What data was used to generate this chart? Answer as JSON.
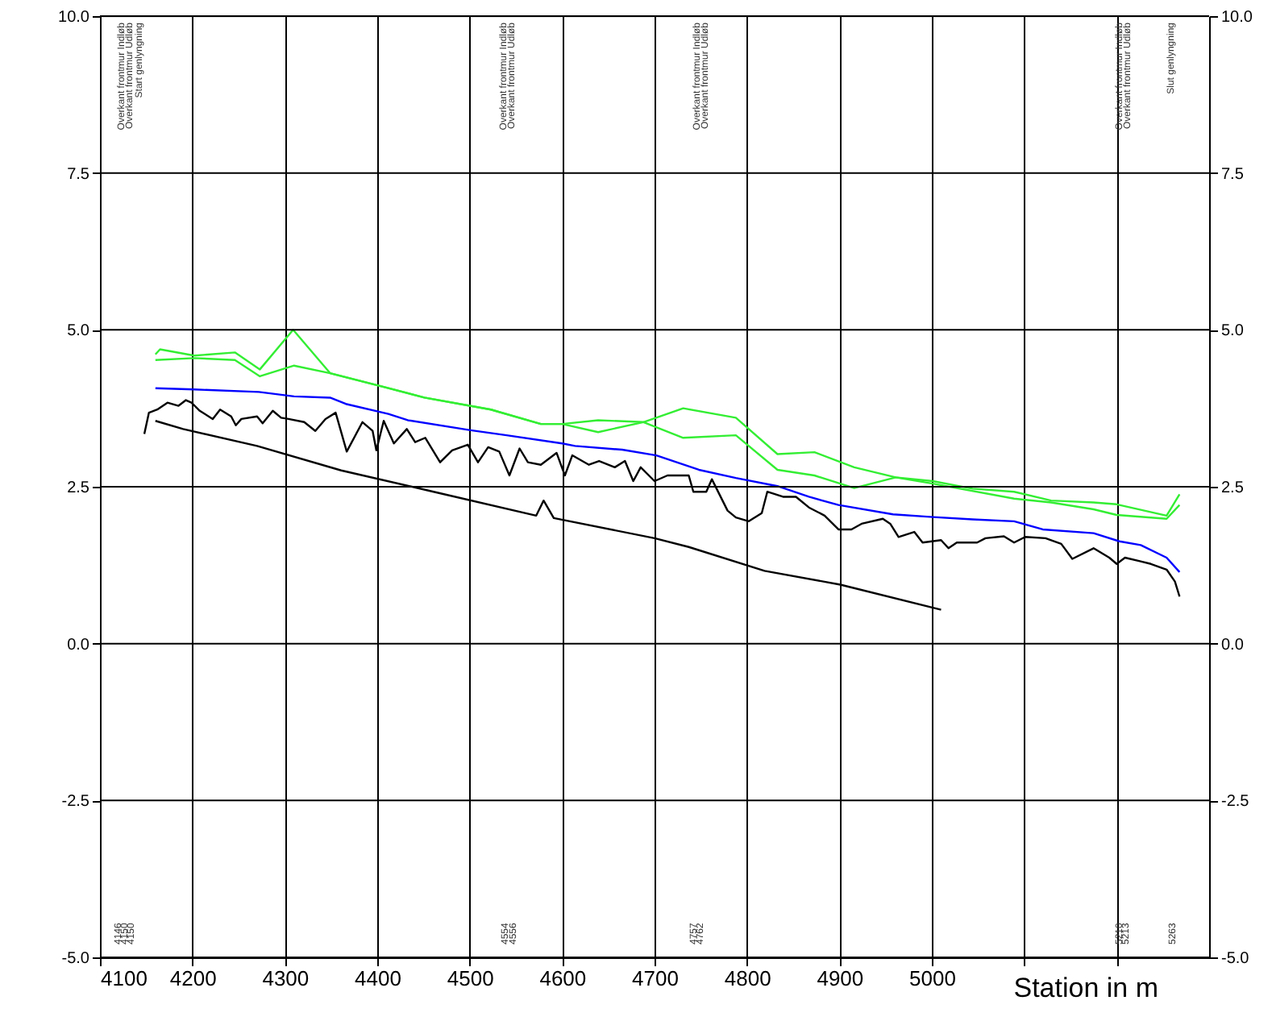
{
  "chart_data": {
    "type": "line",
    "xlabel": "Station in m",
    "xlim": [
      4100,
      5300
    ],
    "xticks": [
      4100,
      4200,
      4300,
      4400,
      4500,
      4600,
      4700,
      4800,
      4900,
      5000,
      {
        "value": 5100,
        "label": null
      },
      {
        "value": 5200,
        "label": null
      }
    ],
    "ylim": [
      -5,
      10
    ],
    "yticks": [
      {
        "value": -5,
        "label": "-5.0"
      },
      {
        "value": -2.5,
        "label": "-2.5"
      },
      {
        "value": 0,
        "label": "0.0"
      },
      {
        "value": 2.5,
        "label": "2.5"
      },
      {
        "value": 5,
        "label": "5.0"
      },
      {
        "value": 7.5,
        "label": "7.5"
      },
      {
        "value": 10,
        "label": "10.0"
      }
    ],
    "y2lim": [
      -5,
      10
    ],
    "y2ticks": [
      {
        "value": -5,
        "label": "-5.0"
      },
      {
        "value": -2.5,
        "label": "-2.5"
      },
      {
        "value": 0,
        "label": "0.0"
      },
      {
        "value": 2.5,
        "label": "2.5"
      },
      {
        "value": 5,
        "label": "5.0"
      },
      {
        "value": 7.5,
        "label": "7.5"
      },
      {
        "value": 10,
        "label": "10.0"
      }
    ],
    "grid": true,
    "marker": "none",
    "line_style": "solid",
    "series": [
      {
        "color": "#000000",
        "x": [
          4148,
          4153,
          4162,
          4173,
          4185,
          4193,
          4199,
          4208,
          4222,
          4230,
          4242,
          4247,
          4253,
          4270,
          4276,
          4287,
          4296,
          4304,
          4321,
          4333,
          4344,
          4355,
          4367,
          4384,
          4395,
          4399,
          4407,
          4418,
          4432,
          4441,
          4452,
          4468,
          4481,
          4498,
          4509,
          4520,
          4532,
          4543,
          4554,
          4563,
          4577,
          4594,
          4603,
          4611,
          4629,
          4640,
          4657,
          4668,
          4677,
          4685,
          4700,
          4714,
          4737,
          4742,
          4756,
          4762,
          4779,
          4788,
          4802,
          4816,
          4822,
          4839,
          4853,
          4867,
          4884,
          4899,
          4913,
          4924,
          4947,
          4955,
          4964,
          4981,
          4990,
          5010,
          5018,
          5027,
          5049,
          5058,
          5078,
          5089,
          5101,
          5123,
          5140,
          5152,
          5175,
          5192,
          5200,
          5209,
          5226,
          5237,
          5254,
          5263,
          5268
        ],
        "values": [
          3.34,
          3.68,
          3.73,
          3.84,
          3.79,
          3.88,
          3.84,
          3.71,
          3.58,
          3.73,
          3.62,
          3.48,
          3.58,
          3.62,
          3.51,
          3.71,
          3.6,
          3.58,
          3.53,
          3.39,
          3.58,
          3.68,
          3.06,
          3.53,
          3.39,
          3.08,
          3.55,
          3.19,
          3.42,
          3.21,
          3.28,
          2.89,
          3.08,
          3.17,
          2.89,
          3.13,
          3.06,
          2.68,
          3.11,
          2.89,
          2.85,
          3.04,
          2.68,
          3.0,
          2.85,
          2.91,
          2.81,
          2.91,
          2.59,
          2.81,
          2.59,
          2.68,
          2.68,
          2.42,
          2.42,
          2.62,
          2.12,
          2.01,
          1.95,
          2.08,
          2.42,
          2.34,
          2.34,
          2.17,
          2.04,
          1.82,
          1.82,
          1.91,
          1.99,
          1.91,
          1.7,
          1.78,
          1.61,
          1.65,
          1.52,
          1.61,
          1.61,
          1.68,
          1.71,
          1.61,
          1.7,
          1.68,
          1.59,
          1.35,
          1.52,
          1.37,
          1.27,
          1.37,
          1.31,
          1.27,
          1.18,
          0.99,
          0.75
        ]
      },
      {
        "color": "#0000ff",
        "x": [
          4160,
          4202,
          4272,
          4310,
          4349,
          4366,
          4412,
          4433,
          4501,
          4540,
          4600,
          4614,
          4665,
          4702,
          4748,
          4788,
          4833,
          4867,
          4899,
          4958,
          4998,
          5044,
          5089,
          5120,
          5175,
          5203,
          5226,
          5254,
          5268
        ],
        "values": [
          4.07,
          4.05,
          4.01,
          3.94,
          3.92,
          3.82,
          3.66,
          3.56,
          3.4,
          3.32,
          3.19,
          3.15,
          3.09,
          3.0,
          2.77,
          2.64,
          2.51,
          2.34,
          2.21,
          2.06,
          2.02,
          1.98,
          1.95,
          1.82,
          1.76,
          1.63,
          1.57,
          1.37,
          1.14
        ]
      },
      {
        "color": "#33ee33",
        "x": [
          4160,
          4165,
          4202,
          4246,
          4273,
          4309,
          4349,
          4407,
          4451,
          4523,
          4577,
          4600,
          4639,
          4688,
          4731,
          4788,
          4833,
          4873,
          4916,
          4961,
          5001,
          5044,
          5089,
          5129,
          5175,
          5200,
          5254,
          5268
        ],
        "values": [
          4.61,
          4.69,
          4.59,
          4.64,
          4.37,
          5.0,
          4.31,
          4.09,
          3.92,
          3.73,
          3.5,
          3.5,
          3.37,
          3.53,
          3.75,
          3.6,
          3.02,
          3.05,
          2.81,
          2.65,
          2.59,
          2.47,
          2.42,
          2.28,
          2.25,
          2.22,
          2.04,
          2.38
        ]
      },
      {
        "color": "#33ee33",
        "x": [
          4160,
          4202,
          4246,
          4273,
          4310,
          4349,
          4407,
          4451,
          4523,
          4577,
          4600,
          4639,
          4688,
          4731,
          4788,
          4833,
          4873,
          4916,
          4961,
          5001,
          5089,
          5129,
          5175,
          5200,
          5254,
          5268
        ],
        "values": [
          4.52,
          4.55,
          4.52,
          4.26,
          4.43,
          4.31,
          4.09,
          3.92,
          3.73,
          3.5,
          3.5,
          3.56,
          3.53,
          3.28,
          3.32,
          2.77,
          2.68,
          2.48,
          2.65,
          2.55,
          2.31,
          2.25,
          2.14,
          2.05,
          1.99,
          2.21
        ]
      },
      {
        "color": "#000000",
        "x": [
          4160,
          4190,
          4270,
          4361,
          4461,
          4572,
          4580,
          4591,
          4700,
          4737,
          4819,
          4901,
          5010
        ],
        "values": [
          3.55,
          3.42,
          3.15,
          2.76,
          2.42,
          2.04,
          2.28,
          2.0,
          1.68,
          1.54,
          1.16,
          0.94,
          0.54
        ]
      }
    ],
    "annotations": [
      "Overkant frontmur Indløb",
      "Overkant frontmur Udløb",
      "Start genlyngning",
      "Overkant frontmur Indløb",
      "Overkant frontmur Udløb",
      "Overkant frontmur Indløb",
      "Overkant frontmur Udløb",
      "Overkant frontmur Indløb",
      "Overkant frontmur Udløb",
      "Slut genlyngning",
      "4146",
      "4150",
      "4150",
      "4554",
      "4556",
      "4757",
      "4762",
      "5210",
      "5213",
      "5263"
    ]
  }
}
